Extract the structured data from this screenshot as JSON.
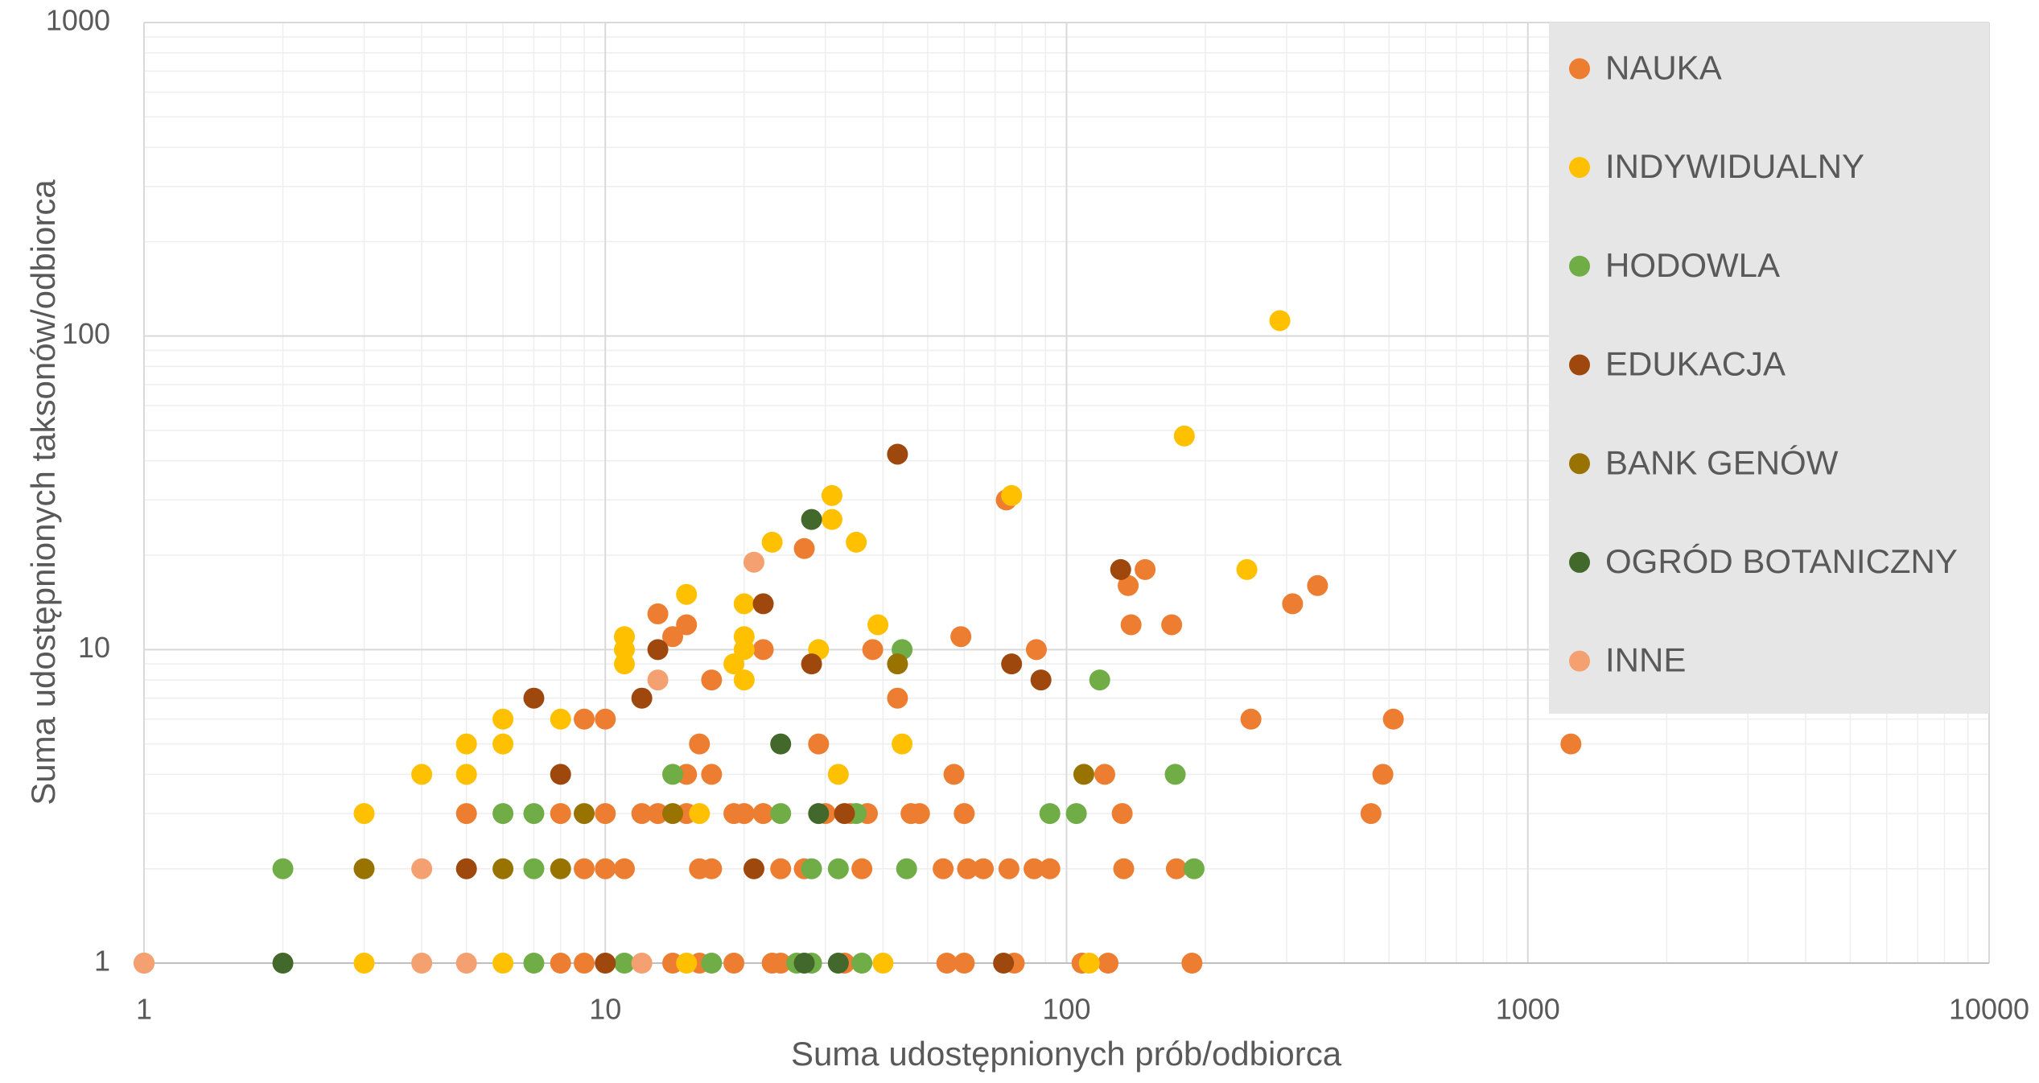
{
  "chart_data": {
    "type": "scatter",
    "x_label": "Suma udostępnionych prób/odbiorca",
    "y_label": "Suma udostępnionych taksonów/odbiorca",
    "log_x": true,
    "log_y": true,
    "xlim": [
      1,
      10000
    ],
    "ylim": [
      1,
      1000
    ],
    "xticks": [
      1,
      10,
      100,
      1000,
      10000
    ],
    "yticks": [
      1,
      10,
      100,
      1000
    ],
    "grid": true,
    "minor_grid": true,
    "legend": "upper right",
    "series": [
      {
        "name": "NAUKA",
        "color": "#ED7D31",
        "x": [
          1,
          8,
          9,
          14,
          16,
          19,
          23,
          24,
          33,
          55,
          60,
          77,
          108,
          123,
          187,
          9,
          10,
          11,
          16,
          17,
          24,
          27,
          36,
          54,
          61,
          66,
          75,
          85,
          92,
          133,
          173,
          5,
          8,
          10,
          12,
          13,
          15,
          19,
          20,
          22,
          30,
          34,
          37,
          46,
          48,
          60,
          132,
          457,
          15,
          17,
          57,
          121,
          485,
          16,
          29,
          1240,
          9,
          10,
          251,
          511,
          43,
          17,
          22,
          38,
          86,
          14,
          59,
          15,
          138,
          169,
          13,
          309,
          136,
          350,
          148,
          27,
          74
        ],
        "values": [
          1,
          1,
          1,
          1,
          1,
          1,
          1,
          1,
          1,
          1,
          1,
          1,
          1,
          1,
          1,
          2,
          2,
          2,
          2,
          2,
          2,
          2,
          2,
          2,
          2,
          2,
          2,
          2,
          2,
          2,
          2,
          3,
          3,
          3,
          3,
          3,
          3,
          3,
          3,
          3,
          3,
          3,
          3,
          3,
          3,
          3,
          3,
          3,
          4,
          4,
          4,
          4,
          4,
          5,
          5,
          5,
          6,
          6,
          6,
          6,
          7,
          8,
          10,
          10,
          10,
          11,
          11,
          12,
          12,
          12,
          13,
          14,
          16,
          16,
          18,
          21,
          30
        ]
      },
      {
        "name": "INDYWIDUALNY",
        "color": "#FFC000",
        "x": [
          3,
          6,
          15,
          40,
          112,
          3,
          16,
          4,
          5,
          32,
          5,
          6,
          44,
          6,
          8,
          20,
          11,
          19,
          11,
          20,
          29,
          11,
          20,
          39,
          20,
          15,
          246,
          23,
          35,
          31,
          31,
          76,
          180,
          290
        ],
        "values": [
          1,
          1,
          1,
          1,
          1,
          3,
          3,
          4,
          4,
          4,
          5,
          5,
          5,
          6,
          6,
          8,
          9,
          9,
          10,
          10,
          10,
          11,
          11,
          12,
          14,
          15,
          18,
          22,
          22,
          26,
          31,
          31,
          48,
          112
        ]
      },
      {
        "name": "HODOWLA",
        "color": "#70AD47",
        "x": [
          7,
          11,
          17,
          26,
          28,
          36,
          2,
          7,
          28,
          32,
          45,
          189,
          6,
          7,
          24,
          35,
          92,
          105,
          14,
          172,
          118,
          44
        ],
        "values": [
          1,
          1,
          1,
          1,
          1,
          1,
          2,
          2,
          2,
          2,
          2,
          2,
          3,
          3,
          3,
          3,
          3,
          3,
          4,
          4,
          8,
          10
        ]
      },
      {
        "name": "EDUKACJA",
        "color": "#9E480E",
        "x": [
          10,
          73,
          5,
          21,
          33,
          8,
          7,
          12,
          28,
          76,
          88,
          13,
          22,
          131,
          43
        ],
        "values": [
          1,
          1,
          2,
          2,
          3,
          4,
          7,
          7,
          9,
          9,
          8,
          10,
          14,
          18,
          42
        ]
      },
      {
        "name": "BANK GENÓW",
        "color": "#997300",
        "x": [
          3,
          6,
          8,
          9,
          14,
          109,
          43
        ],
        "values": [
          2,
          2,
          2,
          3,
          3,
          4,
          9
        ]
      },
      {
        "name": "OGRÓD BOTANICZNY",
        "color": "#43682B",
        "x": [
          2,
          27,
          32,
          29,
          24,
          28
        ],
        "values": [
          1,
          1,
          1,
          3,
          5,
          26
        ]
      },
      {
        "name": "INNE",
        "color": "#F4A070",
        "x": [
          1,
          4,
          5,
          12,
          4,
          13,
          21
        ],
        "values": [
          1,
          1,
          1,
          1,
          2,
          8,
          19
        ]
      }
    ]
  }
}
